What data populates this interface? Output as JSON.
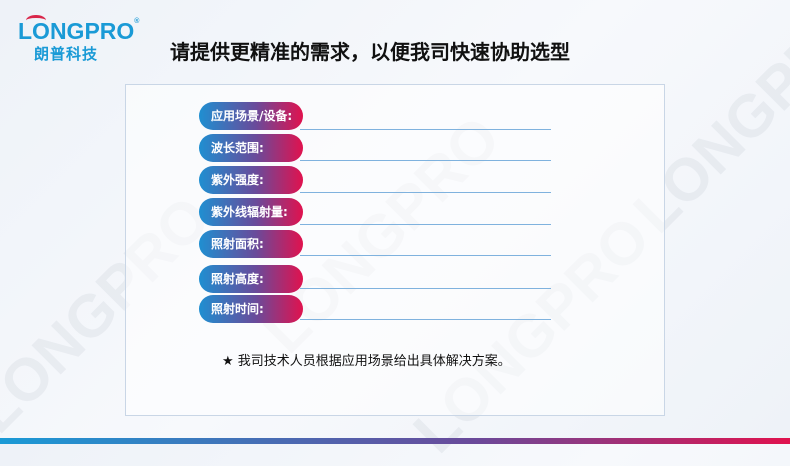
{
  "logo": {
    "en": "LONGPRO",
    "reg": "®",
    "cn": "朗普科技"
  },
  "title": "请提供更精准的需求，以便我司快速协助选型",
  "fields": [
    {
      "label": "应用场景/设备:",
      "value": ""
    },
    {
      "label": "波长范围:",
      "value": ""
    },
    {
      "label": "紫外强度:",
      "value": ""
    },
    {
      "label": "紫外线辐射量:",
      "value": ""
    },
    {
      "label": "照射面积:",
      "value": ""
    },
    {
      "label": "照射高度:",
      "value": ""
    },
    {
      "label": "照射时间:",
      "value": ""
    }
  ],
  "note": "★ 我司技术人员根据应用场景给出具体解决方案。",
  "watermark": "LONGPRO",
  "colors": {
    "blue": "#1a9ad6",
    "red": "#e0124e"
  }
}
